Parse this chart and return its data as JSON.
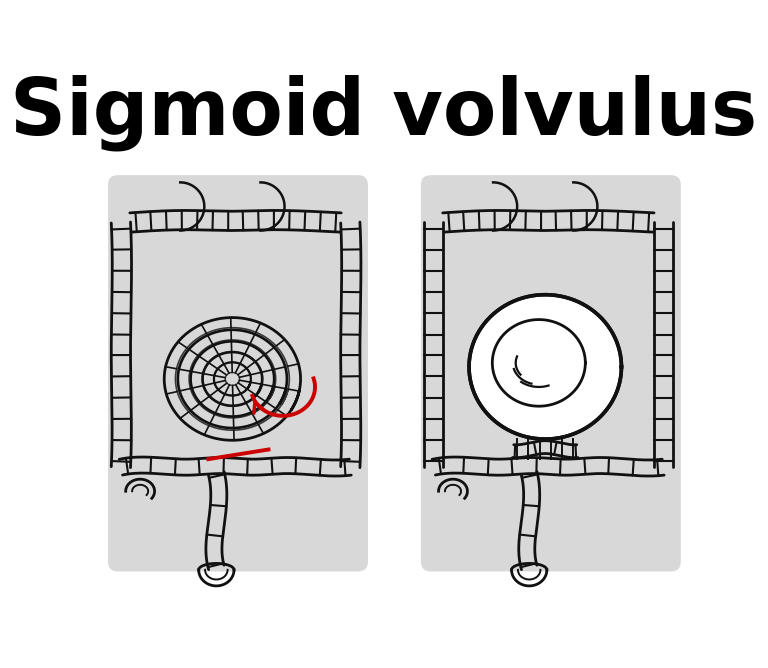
{
  "title": "Sigmoid volvulus",
  "title_fontsize": 56,
  "title_fontweight": "bold",
  "title_color": "#000000",
  "background_color": "#ffffff",
  "line_color": "#111111",
  "line_width": 2.0,
  "red_color": "#cc0000",
  "figsize": [
    7.68,
    6.68
  ],
  "dpi": 100,
  "shadow_color": "#c8c8c8",
  "haustra_color": "#111111"
}
